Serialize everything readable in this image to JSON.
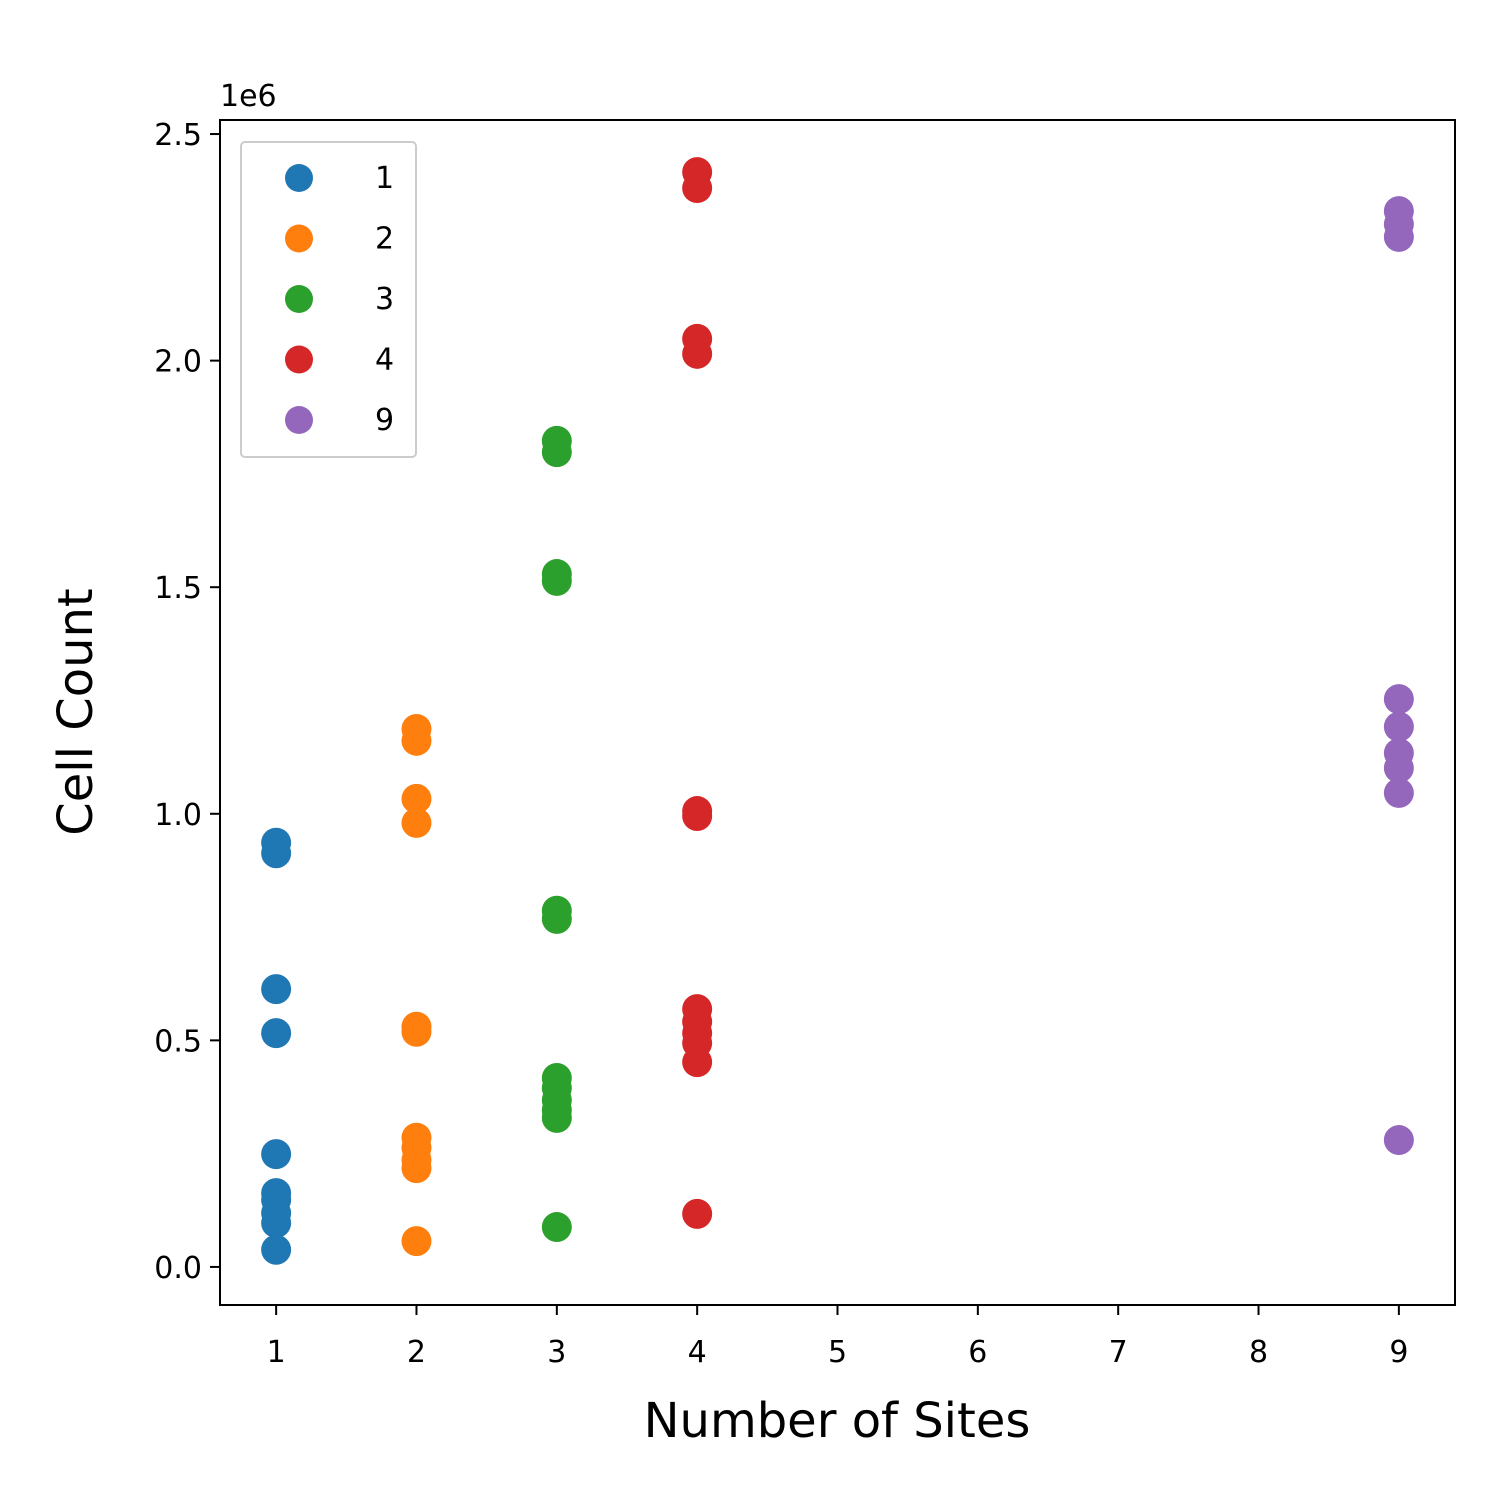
{
  "chart_data": {
    "type": "scatter",
    "x_label": "Number of Sites",
    "y_label": "Cell Count",
    "y_offset_label": "1e6",
    "xlim": [
      0.6,
      9.4
    ],
    "xticks": [
      1,
      2,
      3,
      4,
      5,
      6,
      7,
      8,
      9
    ],
    "ylim": [
      -84000,
      2531000
    ],
    "yticks": [
      {
        "value": 0,
        "label": "0.0"
      },
      {
        "value": 500000,
        "label": "0.5"
      },
      {
        "value": 1000000,
        "label": "1.0"
      },
      {
        "value": 1500000,
        "label": "1.5"
      },
      {
        "value": 2000000,
        "label": "2.0"
      },
      {
        "value": 2500000,
        "label": "2.5"
      }
    ],
    "grid": false,
    "legend": "upper-left",
    "series": [
      {
        "name": "1",
        "color": "#1f77b4",
        "x": [
          1,
          1,
          1,
          1,
          1,
          1,
          1,
          1,
          1,
          1
        ],
        "values": [
          936000,
          913000,
          613000,
          516000,
          249000,
          163000,
          148000,
          119000,
          97000,
          38000
        ]
      },
      {
        "name": "2",
        "color": "#ff7f0e",
        "x": [
          2,
          2,
          2,
          2,
          2,
          2,
          2,
          2,
          2,
          2,
          2
        ],
        "values": [
          1187000,
          1161000,
          1033000,
          980000,
          530000,
          519000,
          285000,
          263000,
          236000,
          218000,
          57000
        ]
      },
      {
        "name": "3",
        "color": "#2ca02c",
        "x": [
          3,
          3,
          3,
          3,
          3,
          3,
          3,
          3,
          3,
          3,
          3,
          3
        ],
        "values": [
          1823000,
          1798000,
          1529000,
          1514000,
          786000,
          768000,
          417000,
          395000,
          368000,
          346000,
          329000,
          88000
        ]
      },
      {
        "name": "4",
        "color": "#d62728",
        "x": [
          4,
          4,
          4,
          4,
          4,
          4,
          4,
          4,
          4,
          4,
          4,
          4
        ],
        "values": [
          2416000,
          2381000,
          2048000,
          2015000,
          1006000,
          995000,
          569000,
          541000,
          516000,
          494000,
          452000,
          117000
        ]
      },
      {
        "name": "9",
        "color": "#9467bd",
        "x": [
          9,
          9,
          9,
          9,
          9,
          9,
          9,
          9,
          9
        ],
        "values": [
          2330000,
          2301000,
          2273000,
          1253000,
          1192000,
          1134000,
          1101000,
          1046000,
          280000
        ]
      }
    ]
  }
}
